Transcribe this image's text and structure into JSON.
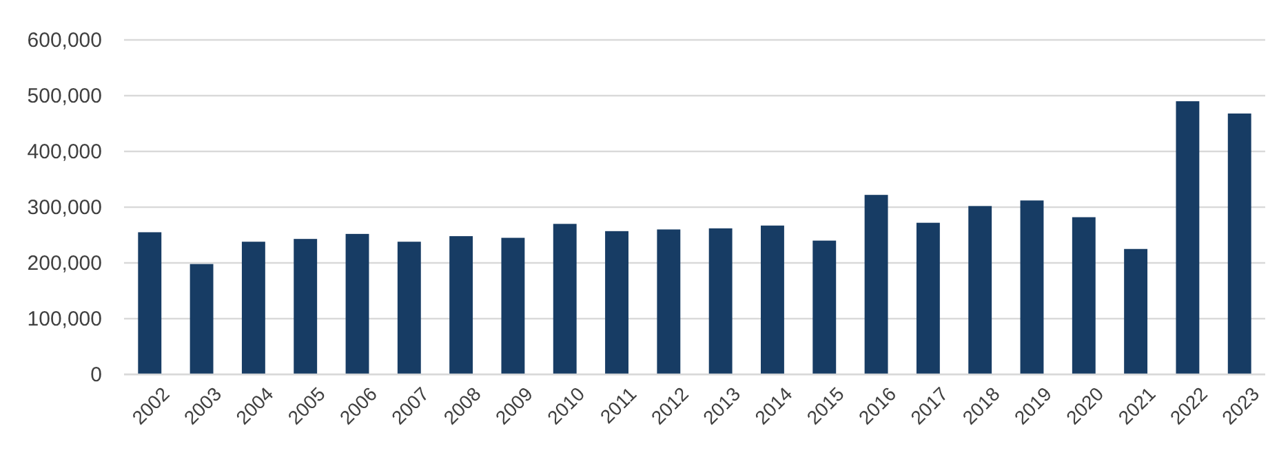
{
  "chart_data": {
    "type": "bar",
    "categories": [
      "2002",
      "2003",
      "2004",
      "2005",
      "2006",
      "2007",
      "2008",
      "2009",
      "2010",
      "2011",
      "2012",
      "2013",
      "2014",
      "2015",
      "2016",
      "2017",
      "2018",
      "2019",
      "2020",
      "2021",
      "2022",
      "2023"
    ],
    "values": [
      255000,
      198000,
      238000,
      243000,
      252000,
      238000,
      248000,
      245000,
      270000,
      257000,
      260000,
      262000,
      267000,
      240000,
      322000,
      272000,
      302000,
      312000,
      282000,
      225000,
      490000,
      468000
    ],
    "color": "#173c64",
    "ylim": [
      0,
      600000
    ],
    "yticks": [
      {
        "value": 0,
        "label": "0"
      },
      {
        "value": 100000,
        "label": "100,000"
      },
      {
        "value": 200000,
        "label": "200,000"
      },
      {
        "value": 300000,
        "label": "300,000"
      },
      {
        "value": 400000,
        "label": "400,000"
      },
      {
        "value": 500000,
        "label": "500,000"
      },
      {
        "value": 600000,
        "label": "600,000"
      }
    ],
    "grid": "y"
  }
}
